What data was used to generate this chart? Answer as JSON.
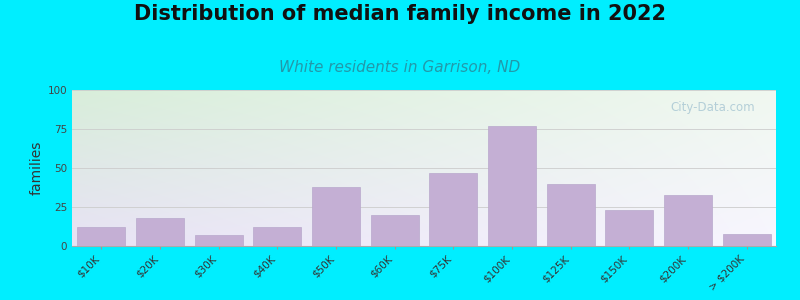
{
  "title": "Distribution of median family income in 2022",
  "subtitle": "White residents in Garrison, ND",
  "ylabel": "families",
  "categories": [
    "$10K",
    "$20K",
    "$30K",
    "$40K",
    "$50K",
    "$60K",
    "$75K",
    "$100K",
    "$125K",
    "$150K",
    "$200K",
    "> $200K"
  ],
  "values": [
    12,
    18,
    7,
    12,
    38,
    20,
    47,
    77,
    40,
    23,
    33,
    8
  ],
  "bar_color": "#c4afd4",
  "bar_edge_color": "#b8a8cc",
  "ylim": [
    0,
    100
  ],
  "yticks": [
    0,
    25,
    50,
    75,
    100
  ],
  "background_outer": "#00eeff",
  "bg_top_left": "#d8eeda",
  "bg_bottom_right": "#ede8f5",
  "grid_color": "#cccccc",
  "title_fontsize": 15,
  "subtitle_fontsize": 11,
  "subtitle_color": "#2299aa",
  "ylabel_fontsize": 10,
  "tick_fontsize": 7.5,
  "watermark_text": "City-Data.com",
  "watermark_color": "#aac8d4"
}
